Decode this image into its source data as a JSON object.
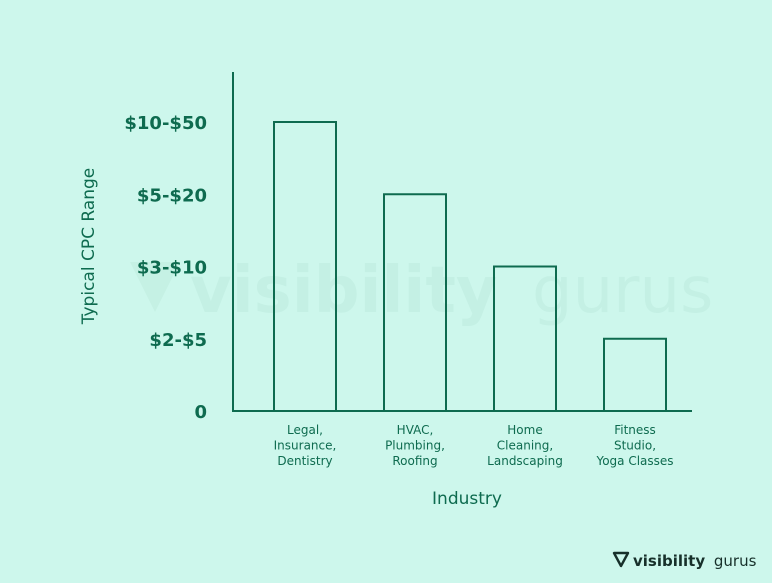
{
  "chart_data": {
    "type": "bar",
    "title": "",
    "xlabel": "Industry",
    "ylabel": "Typical CPC Range",
    "categories": [
      [
        "Legal,",
        "Insurance,",
        "Dentistry"
      ],
      [
        "HVAC,",
        "Plumbing,",
        "Roofing"
      ],
      [
        "Home",
        "Cleaning,",
        "Landscaping"
      ],
      [
        "Fitness",
        "Studio,",
        "Yoga Classes"
      ]
    ],
    "y_ticks": [
      "0",
      "$2-$5",
      "$3-$10",
      "$5-$20",
      "$10-$50"
    ],
    "values": [
      4,
      3,
      2,
      1
    ],
    "ylim": [
      0,
      4
    ],
    "grid": false,
    "colors": {
      "background": "#cdf7ec",
      "accent": "#0e6b4f",
      "bar_fill": "none"
    }
  },
  "watermark": {
    "word_bold": "visibility",
    "word_light": "gurus"
  },
  "brand": {
    "name_bold": "visibility",
    "name_light": "gurus",
    "icon": "v-logo-icon"
  }
}
